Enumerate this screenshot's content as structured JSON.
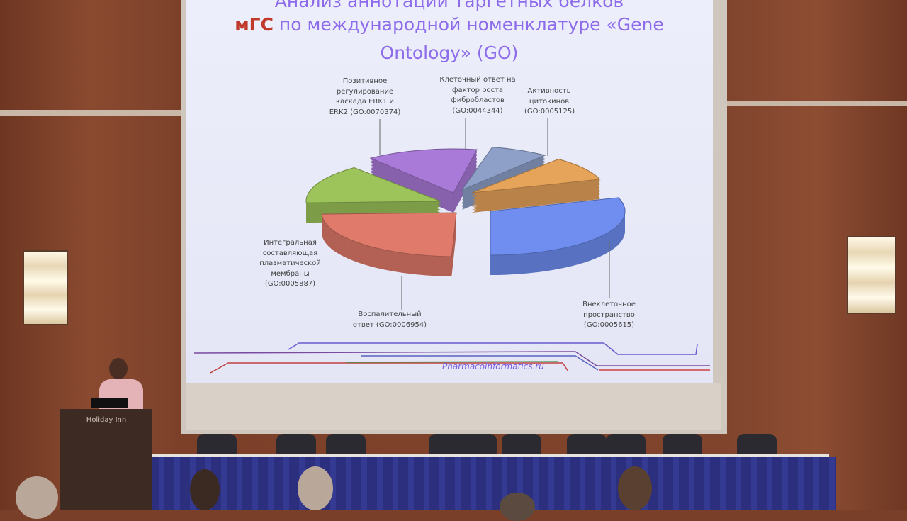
{
  "slide": {
    "title_line1": "Анализ аннотации таргетных белков",
    "title_highlight": "мГС",
    "title_line2": "по международной номенклатуре «Gene",
    "title_line3": "Ontology» (GO)",
    "labels": {
      "erk": "Позитивное регулирование каскада ERK1 и ERK2 (GO:0070374)",
      "fgf": "Клеточный ответ на фактор роста фибробластов (GO:0044344)",
      "cytokine": "Активность цитокинов (GO:0005125)",
      "membrane": "Интегральная составляющая плазматической мембраны (GO:0005887)",
      "inflammatory": "Воспалительный ответ (GO:0006954)",
      "extracellular": "Внеклеточное пространство (GO:0005615)"
    },
    "brand": "Pharmacoinformatics.ru",
    "slice_colors": {
      "extracellular": "#6f8ef0",
      "inflammatory": "#e07a6a",
      "membrane": "#9cc45a",
      "erk": "#a97ad8",
      "fgf": "#8ea0c8",
      "cytokine": "#e6a35a"
    }
  },
  "podium": {
    "logo": "Holiday Inn"
  }
}
